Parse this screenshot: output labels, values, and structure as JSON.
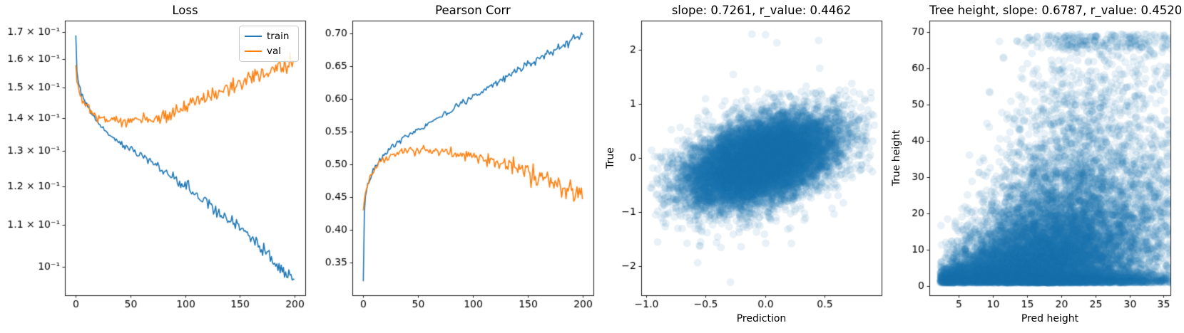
{
  "figure": {
    "background": "#ffffff"
  },
  "colors": {
    "train": "#1f77b4",
    "val": "#ff7f0e",
    "scatter": "#1f77b4",
    "spine": "#000000",
    "text": "#000000",
    "legend_border": "#cccccc"
  },
  "chart_data": [
    {
      "type": "line",
      "title": "Loss",
      "yscale": "log",
      "xlim": [
        -10,
        210
      ],
      "ylim": [
        0.0938,
        0.1745
      ],
      "grid": false,
      "legend": {
        "position": "upper right",
        "entries": [
          "train",
          "val"
        ]
      },
      "xticks": {
        "values": [
          0,
          50,
          100,
          150,
          200
        ],
        "labels": [
          "0",
          "50",
          "100",
          "150",
          "200"
        ]
      },
      "yticks": {
        "values": [
          0.17,
          0.16,
          0.15,
          0.14,
          0.13,
          0.12,
          0.11,
          0.1
        ],
        "labels": [
          "1.7 × 10⁻¹",
          "1.6 × 10⁻¹",
          "1.5 × 10⁻¹",
          "1.4 × 10⁻¹",
          "1.3 × 10⁻¹",
          "1.2 × 10⁻¹",
          "1.1 × 10⁻¹",
          "10⁻¹"
        ]
      },
      "series": [
        {
          "name": "train",
          "color": "#1f77b4",
          "noise": [
            0.0005,
            0.0009
          ],
          "keypoints": [
            [
              0,
              0.1688
            ],
            [
              1,
              0.156
            ],
            [
              2,
              0.1524
            ],
            [
              3,
              0.1504
            ],
            [
              4,
              0.149
            ],
            [
              5,
              0.1478
            ],
            [
              6,
              0.147
            ],
            [
              8,
              0.1455
            ],
            [
              10,
              0.1442
            ],
            [
              12,
              0.143
            ],
            [
              14,
              0.142
            ],
            [
              16,
              0.1408
            ],
            [
              18,
              0.1398
            ],
            [
              20,
              0.1388
            ],
            [
              23,
              0.1375
            ],
            [
              26,
              0.1363
            ],
            [
              30,
              0.135
            ],
            [
              34,
              0.134
            ],
            [
              38,
              0.133
            ],
            [
              42,
              0.1321
            ],
            [
              46,
              0.1312
            ],
            [
              50,
              0.1303
            ],
            [
              55,
              0.1295
            ],
            [
              60,
              0.1285
            ],
            [
              65,
              0.1275
            ],
            [
              70,
              0.1263
            ],
            [
              75,
              0.1253
            ],
            [
              80,
              0.1242
            ],
            [
              85,
              0.1232
            ],
            [
              90,
              0.1222
            ],
            [
              95,
              0.1212
            ],
            [
              100,
              0.12
            ],
            [
              105,
              0.119
            ],
            [
              110,
              0.1178
            ],
            [
              115,
              0.1168
            ],
            [
              120,
              0.1157
            ],
            [
              125,
              0.1146
            ],
            [
              130,
              0.1136
            ],
            [
              135,
              0.1126
            ],
            [
              140,
              0.1115
            ],
            [
              145,
              0.1103
            ],
            [
              150,
              0.109
            ],
            [
              155,
              0.108
            ],
            [
              160,
              0.1068
            ],
            [
              165,
              0.1056
            ],
            [
              170,
              0.1045
            ],
            [
              175,
              0.1033
            ],
            [
              180,
              0.102
            ],
            [
              185,
              0.1008
            ],
            [
              190,
              0.0995
            ],
            [
              195,
              0.0985
            ],
            [
              200,
              0.0972
            ]
          ]
        },
        {
          "name": "val",
          "color": "#ff7f0e",
          "noise": [
            0.0007,
            0.0016
          ],
          "keypoints": [
            [
              0,
              0.1578
            ],
            [
              1,
              0.153
            ],
            [
              2,
              0.151
            ],
            [
              3,
              0.1494
            ],
            [
              4,
              0.1482
            ],
            [
              5,
              0.1472
            ],
            [
              6,
              0.1464
            ],
            [
              8,
              0.145
            ],
            [
              10,
              0.144
            ],
            [
              12,
              0.1432
            ],
            [
              14,
              0.1424
            ],
            [
              16,
              0.1418
            ],
            [
              18,
              0.1412
            ],
            [
              20,
              0.1408
            ],
            [
              23,
              0.1402
            ],
            [
              26,
              0.1398
            ],
            [
              30,
              0.1393
            ],
            [
              35,
              0.139
            ],
            [
              40,
              0.1388
            ],
            [
              45,
              0.1387
            ],
            [
              50,
              0.1388
            ],
            [
              55,
              0.139
            ],
            [
              60,
              0.1392
            ],
            [
              65,
              0.1394
            ],
            [
              70,
              0.1398
            ],
            [
              75,
              0.1402
            ],
            [
              80,
              0.1406
            ],
            [
              85,
              0.1412
            ],
            [
              90,
              0.142
            ],
            [
              95,
              0.1428
            ],
            [
              100,
              0.1436
            ],
            [
              105,
              0.1442
            ],
            [
              110,
              0.145
            ],
            [
              115,
              0.1458
            ],
            [
              120,
              0.1466
            ],
            [
              125,
              0.1474
            ],
            [
              130,
              0.1482
            ],
            [
              135,
              0.149
            ],
            [
              140,
              0.15
            ],
            [
              145,
              0.1508
            ],
            [
              150,
              0.1516
            ],
            [
              155,
              0.1524
            ],
            [
              160,
              0.1532
            ],
            [
              165,
              0.154
            ],
            [
              170,
              0.1548
            ],
            [
              175,
              0.1555
            ],
            [
              180,
              0.156
            ],
            [
              185,
              0.1566
            ],
            [
              190,
              0.1572
            ],
            [
              195,
              0.158
            ],
            [
              200,
              0.1592
            ]
          ]
        }
      ]
    },
    {
      "type": "line",
      "title": "Pearson Corr",
      "yscale": "linear",
      "xlim": [
        -10,
        210
      ],
      "ylim": [
        0.3005,
        0.7195
      ],
      "grid": false,
      "xticks": {
        "values": [
          0,
          50,
          100,
          150,
          200
        ],
        "labels": [
          "0",
          "50",
          "100",
          "150",
          "200"
        ]
      },
      "yticks": {
        "values": [
          0.35,
          0.4,
          0.45,
          0.5,
          0.55,
          0.6,
          0.65,
          0.7
        ],
        "labels": [
          "0.35",
          "0.40",
          "0.45",
          "0.50",
          "0.55",
          "0.60",
          "0.65",
          "0.70"
        ]
      },
      "series": [
        {
          "name": "train",
          "color": "#1f77b4",
          "noise": [
            0.0018,
            0.0032
          ],
          "keypoints": [
            [
              0,
              0.322
            ],
            [
              1,
              0.432
            ],
            [
              2,
              0.452
            ],
            [
              3,
              0.462
            ],
            [
              4,
              0.469
            ],
            [
              5,
              0.474
            ],
            [
              6,
              0.478
            ],
            [
              8,
              0.486
            ],
            [
              10,
              0.492
            ],
            [
              12,
              0.498
            ],
            [
              14,
              0.503
            ],
            [
              16,
              0.508
            ],
            [
              18,
              0.512
            ],
            [
              20,
              0.516
            ],
            [
              23,
              0.521
            ],
            [
              26,
              0.526
            ],
            [
              30,
              0.532
            ],
            [
              35,
              0.538
            ],
            [
              40,
              0.543
            ],
            [
              45,
              0.548
            ],
            [
              50,
              0.553
            ],
            [
              55,
              0.558
            ],
            [
              60,
              0.563
            ],
            [
              65,
              0.568
            ],
            [
              70,
              0.573
            ],
            [
              75,
              0.578
            ],
            [
              80,
              0.583
            ],
            [
              85,
              0.588
            ],
            [
              90,
              0.593
            ],
            [
              95,
              0.598
            ],
            [
              100,
              0.603
            ],
            [
              105,
              0.608
            ],
            [
              110,
              0.613
            ],
            [
              115,
              0.618
            ],
            [
              120,
              0.623
            ],
            [
              125,
              0.628
            ],
            [
              130,
              0.633
            ],
            [
              135,
              0.638
            ],
            [
              140,
              0.643
            ],
            [
              145,
              0.648
            ],
            [
              150,
              0.653
            ],
            [
              155,
              0.658
            ],
            [
              160,
              0.662
            ],
            [
              165,
              0.666
            ],
            [
              170,
              0.671
            ],
            [
              175,
              0.675
            ],
            [
              180,
              0.679
            ],
            [
              185,
              0.684
            ],
            [
              190,
              0.689
            ],
            [
              195,
              0.693
            ],
            [
              200,
              0.698
            ]
          ]
        },
        {
          "name": "val",
          "color": "#ff7f0e",
          "noise": [
            0.0018,
            0.0085
          ],
          "keypoints": [
            [
              0,
              0.43
            ],
            [
              1,
              0.447
            ],
            [
              2,
              0.456
            ],
            [
              3,
              0.463
            ],
            [
              4,
              0.469
            ],
            [
              5,
              0.474
            ],
            [
              6,
              0.478
            ],
            [
              8,
              0.486
            ],
            [
              10,
              0.492
            ],
            [
              12,
              0.496
            ],
            [
              14,
              0.5
            ],
            [
              16,
              0.504
            ],
            [
              18,
              0.507
            ],
            [
              20,
              0.509
            ],
            [
              23,
              0.512
            ],
            [
              26,
              0.515
            ],
            [
              30,
              0.517
            ],
            [
              35,
              0.519
            ],
            [
              40,
              0.521
            ],
            [
              45,
              0.522
            ],
            [
              50,
              0.522
            ],
            [
              55,
              0.522
            ],
            [
              60,
              0.521
            ],
            [
              65,
              0.521
            ],
            [
              70,
              0.52
            ],
            [
              75,
              0.519
            ],
            [
              80,
              0.518
            ],
            [
              85,
              0.517
            ],
            [
              90,
              0.515
            ],
            [
              95,
              0.514
            ],
            [
              100,
              0.512
            ],
            [
              105,
              0.51
            ],
            [
              110,
              0.508
            ],
            [
              115,
              0.506
            ],
            [
              120,
              0.503
            ],
            [
              125,
              0.501
            ],
            [
              130,
              0.498
            ],
            [
              135,
              0.496
            ],
            [
              140,
              0.493
            ],
            [
              145,
              0.49
            ],
            [
              150,
              0.487
            ],
            [
              155,
              0.484
            ],
            [
              160,
              0.481
            ],
            [
              165,
              0.478
            ],
            [
              170,
              0.475
            ],
            [
              175,
              0.472
            ],
            [
              180,
              0.469
            ],
            [
              185,
              0.466
            ],
            [
              190,
              0.463
            ],
            [
              195,
              0.456
            ],
            [
              200,
              0.447
            ]
          ]
        }
      ]
    },
    {
      "type": "scatter",
      "title": "slope: 0.7261, r_value: 0.4462",
      "slope": 0.7261,
      "r_value": 0.4462,
      "xlabel": "Prediction",
      "ylabel": "True",
      "xlim": [
        -1.04,
        0.98
      ],
      "ylim": [
        -2.54,
        2.54
      ],
      "grid": false,
      "xticks": {
        "values": [
          -1.0,
          -0.5,
          0.0,
          0.5
        ],
        "labels": [
          "−1.0",
          "−0.5",
          "0.0",
          "0.5"
        ]
      },
      "yticks": {
        "values": [
          -2,
          -1,
          0,
          1,
          2
        ],
        "labels": [
          "−2",
          "−1",
          "0",
          "1",
          "2"
        ]
      },
      "points": {
        "model": "gaussian",
        "n": 13000,
        "alpha": 0.1,
        "radius": 5.4,
        "color": "#1f77b4",
        "x_mean": -0.03,
        "x_std": 0.3,
        "y_mean": -0.05,
        "y_std": 0.4,
        "corr": 0.45,
        "tail_frac": 0.05,
        "tail_scale": 1.5,
        "x_clip": [
          -0.98,
          0.92
        ],
        "y_clip": [
          -2.32,
          2.32
        ]
      },
      "outliers": [
        [
          -0.11,
          2.29
        ],
        [
          0.005,
          2.28
        ],
        [
          0.1,
          2.13
        ],
        [
          0.46,
          1.66
        ],
        [
          -0.29,
          -2.3
        ],
        [
          -0.2,
          -1.64
        ],
        [
          0.73,
          1.38
        ]
      ]
    },
    {
      "type": "scatter",
      "title": "Tree height, slope: 0.6787, r_value: 0.4520",
      "slope": 0.6787,
      "r_value": 0.452,
      "xlabel": "Pred height",
      "ylabel": "True height",
      "xlim": [
        0.7,
        36.0
      ],
      "ylim": [
        -2.6,
        73.2
      ],
      "grid": false,
      "xticks": {
        "values": [
          5,
          10,
          15,
          20,
          25,
          30,
          35
        ],
        "labels": [
          "5",
          "10",
          "15",
          "20",
          "25",
          "30",
          "35"
        ]
      },
      "yticks": {
        "values": [
          0,
          10,
          20,
          30,
          40,
          50,
          60,
          70
        ],
        "labels": [
          "0",
          "10",
          "20",
          "30",
          "40",
          "50",
          "60",
          "70"
        ]
      },
      "points": {
        "model": "tree",
        "n": 14500,
        "alpha": 0.1,
        "radius": 5.4,
        "color": "#1f77b4",
        "x_mean": 18.5,
        "x_std": 8.3,
        "x_min": 2.3,
        "x_reflect": 36.0,
        "y_slope": 0.88,
        "y_log_sigma": 0.78,
        "y_log_mu": -0.3,
        "y_add_noise": 1.2,
        "floor_frac": 0.26,
        "floor_base": 0.85,
        "floor_scale": 1.3,
        "y_min": 0.8,
        "y_max": 69.5
      },
      "outliers": []
    }
  ]
}
